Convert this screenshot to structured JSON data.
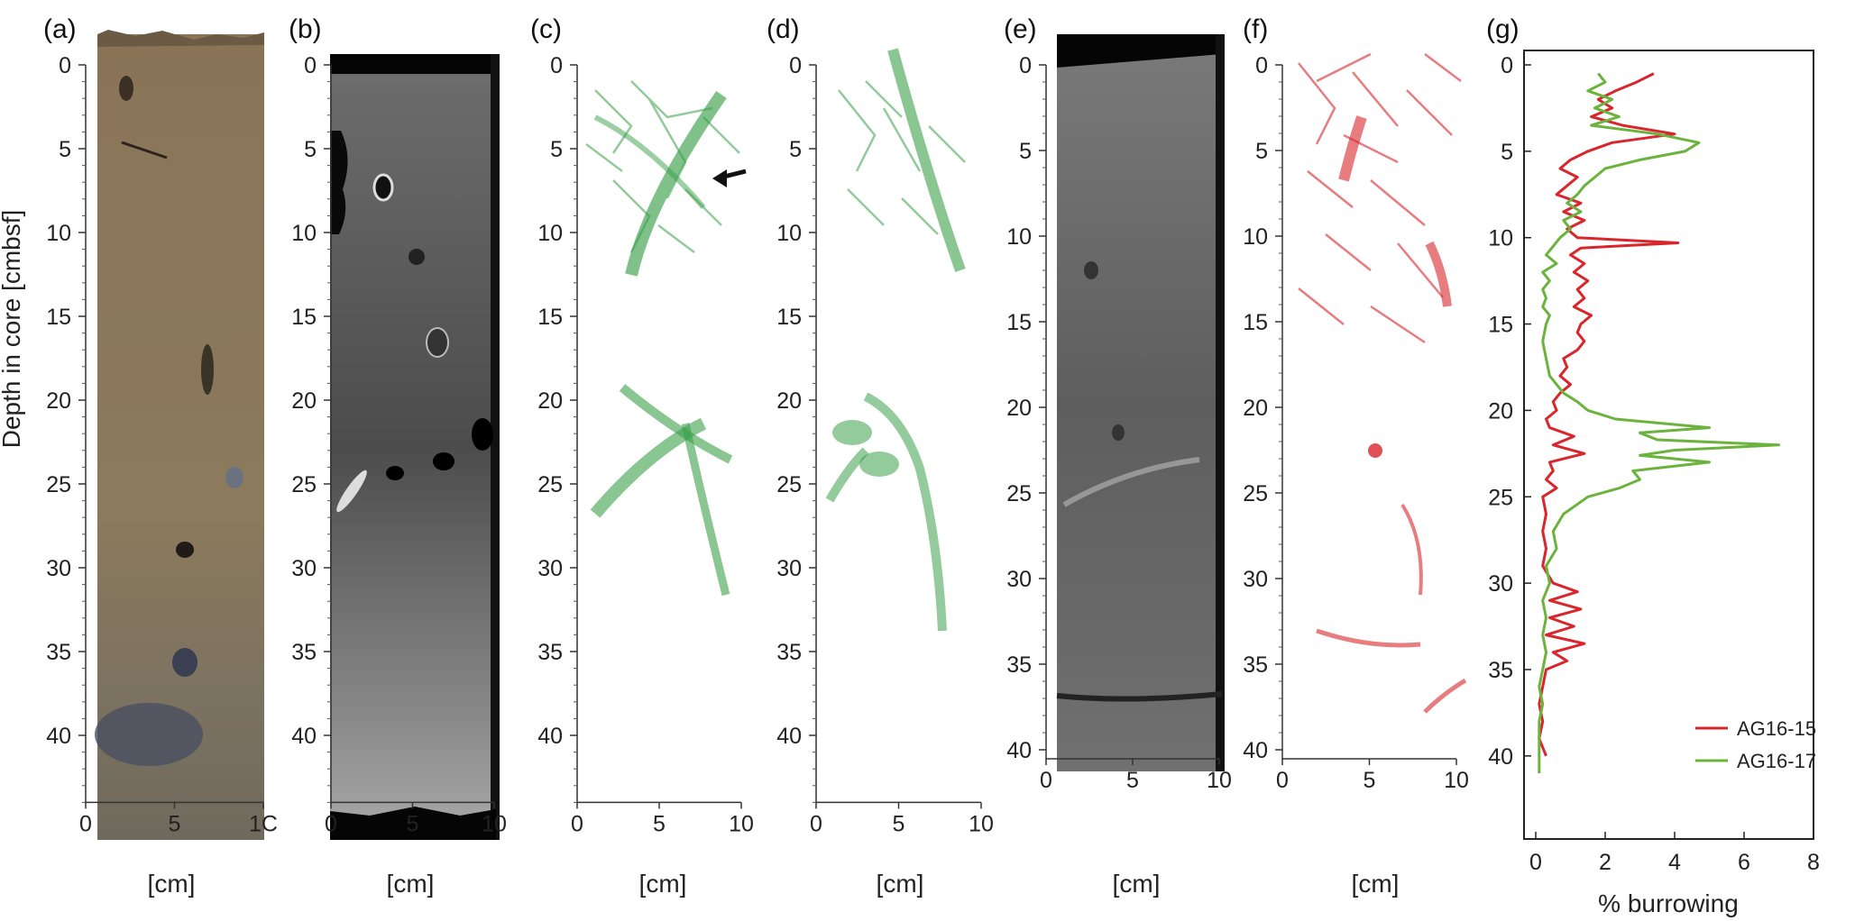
{
  "figure": {
    "panels": [
      {
        "id": "a",
        "label": "(a)",
        "type": "core-photo",
        "xlabel": "[cm]",
        "xticks": [
          "0",
          "5",
          "1C"
        ],
        "yticks": [
          "0",
          "5",
          "10",
          "15",
          "20",
          "25",
          "30",
          "35",
          "40"
        ],
        "ylabel": "Depth in core [cmbsf]"
      },
      {
        "id": "b",
        "label": "(b)",
        "type": "ct-scan",
        "xlabel": "[cm]",
        "xticks": [
          "0",
          "5",
          "10"
        ],
        "yticks": [
          "0",
          "5",
          "10",
          "15",
          "20",
          "25",
          "30",
          "35",
          "40"
        ]
      },
      {
        "id": "c",
        "label": "(c)",
        "type": "burrow-render",
        "color": "#3aa04a",
        "xlabel": "[cm]",
        "xticks": [
          "0",
          "5",
          "10"
        ],
        "yticks": [
          "0",
          "5",
          "10",
          "15",
          "20",
          "25",
          "30",
          "35",
          "40"
        ]
      },
      {
        "id": "d",
        "label": "(d)",
        "type": "burrow-render",
        "color": "#3aa04a",
        "xlabel": "[cm]",
        "xticks": [
          "0",
          "5",
          "10"
        ],
        "yticks": [
          "0",
          "5",
          "10",
          "15",
          "20",
          "25",
          "30",
          "35",
          "40"
        ]
      },
      {
        "id": "e",
        "label": "(e)",
        "type": "ct-scan",
        "xlabel": "[cm]",
        "xticks": [
          "0",
          "5",
          "10"
        ],
        "yticks": [
          "0",
          "5",
          "10",
          "15",
          "20",
          "25",
          "30",
          "35",
          "40"
        ]
      },
      {
        "id": "f",
        "label": "(f)",
        "type": "burrow-render",
        "color": "#d8262c",
        "xlabel": "[cm]",
        "xticks": [
          "0",
          "5",
          "10"
        ],
        "yticks": [
          "0",
          "5",
          "10",
          "15",
          "20",
          "25",
          "30",
          "35",
          "40"
        ]
      }
    ]
  },
  "chart_data": {
    "type": "line",
    "panel_label": "(g)",
    "orientation": "vertical-depth",
    "xlabel": "% burrowing",
    "ylabel": "",
    "xlim": [
      0,
      8
    ],
    "ylim": [
      0,
      41
    ],
    "xticks": [
      0,
      2,
      4,
      6,
      8
    ],
    "yticks": [
      0,
      5,
      10,
      15,
      20,
      25,
      30,
      35,
      40
    ],
    "legend_position": "bottom-right",
    "series": [
      {
        "name": "AG16-15",
        "color": "#d8262c",
        "depth": [
          0.5,
          1,
          1.5,
          2,
          2.5,
          3,
          3.5,
          4,
          4.5,
          5,
          5.5,
          6,
          6.5,
          7,
          7.5,
          8,
          8.5,
          9,
          9.5,
          10,
          10.3,
          10.6,
          11,
          11.5,
          12,
          12.5,
          13,
          13.5,
          14,
          14.5,
          15,
          15.5,
          16,
          16.5,
          17,
          17.5,
          18,
          18.5,
          19,
          19.5,
          20,
          20.5,
          21,
          21.5,
          22,
          22.5,
          23,
          23.5,
          24,
          24.5,
          25,
          26,
          27,
          28,
          29,
          30,
          30.5,
          31,
          31.5,
          32,
          32.5,
          33,
          33.5,
          34,
          34.5,
          35,
          36,
          37,
          38,
          39,
          40
        ],
        "values": [
          3.4,
          2.9,
          2.3,
          1.8,
          2.2,
          1.6,
          2.5,
          4.0,
          2.2,
          1.5,
          1.0,
          0.7,
          1.2,
          0.9,
          0.6,
          1.3,
          0.8,
          1.4,
          0.9,
          1.2,
          4.1,
          1.3,
          1.0,
          1.4,
          1.1,
          1.5,
          1.2,
          1.4,
          1.1,
          1.6,
          1.3,
          1.2,
          1.4,
          1.2,
          0.8,
          0.9,
          0.7,
          1.0,
          0.7,
          0.5,
          0.6,
          0.3,
          0.4,
          1.1,
          0.5,
          1.4,
          0.4,
          0.5,
          0.3,
          0.6,
          0.2,
          0.3,
          0.2,
          0.3,
          0.2,
          0.5,
          1.2,
          0.4,
          1.3,
          0.4,
          1.1,
          0.3,
          1.4,
          0.5,
          0.9,
          0.3,
          0.2,
          0.1,
          0.2,
          0.1,
          0.3
        ]
      },
      {
        "name": "AG16-17",
        "color": "#6cb33e",
        "depth": [
          0.5,
          1,
          1.5,
          2,
          2.5,
          3,
          3.5,
          4,
          4.5,
          5,
          5.5,
          6,
          6.5,
          7,
          7.5,
          8,
          8.5,
          9,
          9.5,
          10,
          10.5,
          11,
          11.5,
          12,
          12.5,
          13,
          13.5,
          14,
          14.5,
          15,
          16,
          17,
          18,
          19,
          19.5,
          20,
          20.5,
          21,
          21.3,
          21.7,
          22,
          22.3,
          22.6,
          23,
          23.5,
          24,
          24.5,
          25,
          26,
          27,
          28,
          29,
          30,
          31,
          32,
          33,
          34,
          35,
          36,
          37,
          38,
          39,
          40,
          41
        ],
        "values": [
          1.8,
          2.0,
          1.5,
          2.2,
          1.7,
          2.4,
          1.6,
          3.5,
          4.7,
          4.3,
          3.0,
          2.0,
          1.7,
          1.4,
          1.2,
          0.9,
          1.3,
          0.8,
          1.0,
          0.7,
          0.5,
          0.3,
          0.6,
          0.2,
          0.4,
          0.2,
          0.3,
          0.2,
          0.4,
          0.3,
          0.2,
          0.3,
          0.4,
          0.8,
          1.2,
          1.5,
          2.3,
          5.0,
          3.0,
          3.5,
          7.0,
          4.0,
          3.0,
          5.0,
          2.8,
          3.0,
          2.4,
          1.5,
          0.8,
          0.5,
          0.6,
          0.3,
          0.4,
          0.2,
          0.3,
          0.2,
          0.3,
          0.2,
          0.1,
          0.2,
          0.1,
          0.1,
          0.1,
          0.1
        ]
      }
    ]
  }
}
